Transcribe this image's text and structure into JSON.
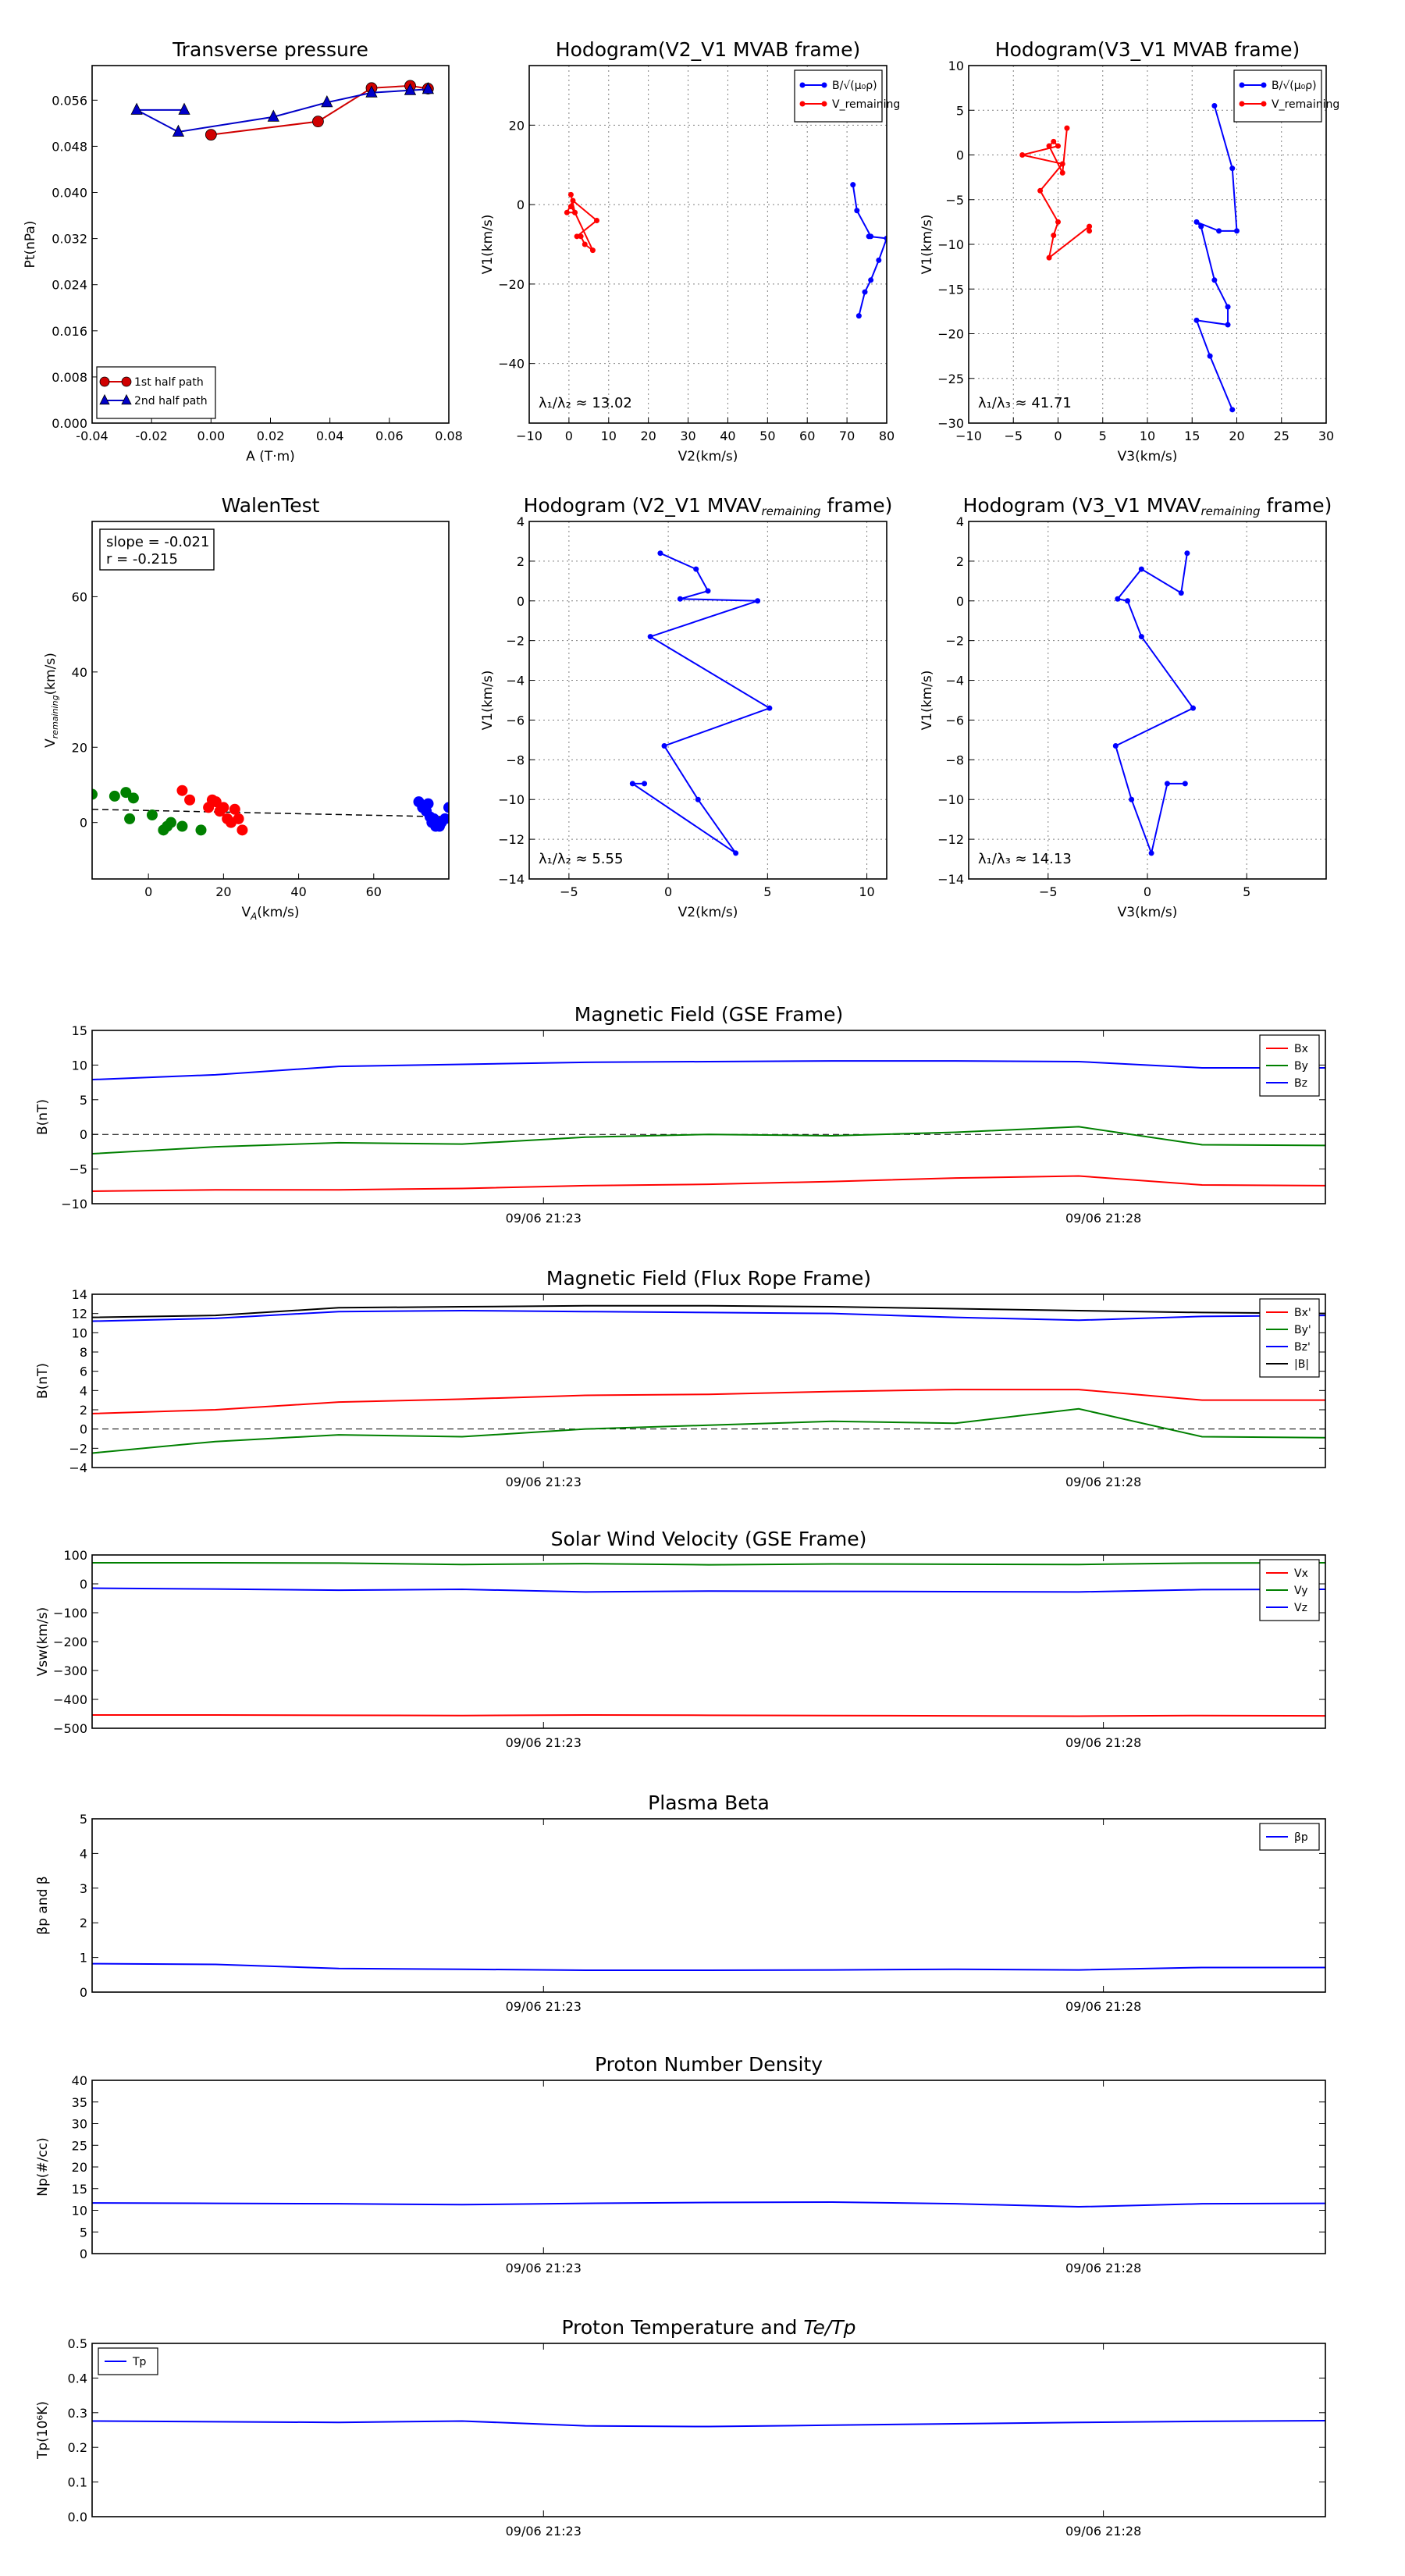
{
  "chart_data": [
    {
      "id": "tp",
      "type": "line",
      "title": "Transverse pressure",
      "xlabel": "A (T·m)",
      "ylabel": "Pt(nPa)",
      "xlim": [
        -0.04,
        0.08
      ],
      "ylim": [
        0.0,
        0.062
      ],
      "xticks": [
        "-0.04",
        "-0.02",
        "0.00",
        "0.02",
        "0.04",
        "0.06",
        "0.08"
      ],
      "yticks": [
        "0.000",
        "0.008",
        "0.016",
        "0.024",
        "0.032",
        "0.040",
        "0.048",
        "0.056"
      ],
      "legend": "lower-left",
      "series": [
        {
          "name": "1st half path",
          "color": "#d00000",
          "marker": "circle",
          "x": [
            0.0,
            0.036,
            0.054,
            0.067,
            0.073
          ],
          "y": [
            0.05,
            0.0523,
            0.0581,
            0.0585,
            0.058
          ]
        },
        {
          "name": "2nd half path",
          "color": "#0000c8",
          "marker": "triangle",
          "x": [
            -0.009,
            -0.025,
            -0.011,
            0.021,
            0.039,
            0.054,
            0.067,
            0.073
          ],
          "y": [
            0.0543,
            0.0543,
            0.0505,
            0.0531,
            0.0556,
            0.0573,
            0.0577,
            0.0579
          ]
        }
      ]
    },
    {
      "id": "h1",
      "type": "line",
      "title": "Hodogram(V2_V1 MVAB frame)",
      "xlabel": "V2(km/s)",
      "ylabel": "V1(km/s)",
      "xlim": [
        -10,
        80
      ],
      "ylim": [
        -55,
        35
      ],
      "xticks": [
        "−10",
        "0",
        "10",
        "20",
        "30",
        "40",
        "50",
        "60",
        "70",
        "80"
      ],
      "yticks": [
        "20",
        "0",
        "−20",
        "−40"
      ],
      "legend": "top-right",
      "annotation": "λ₁/λ₂ ≈ 13.02",
      "series": [
        {
          "name": "B/√(μ₀ρ)",
          "color": "#0000ff",
          "x": [
            71.5,
            72.5,
            76,
            75.5,
            80,
            78,
            76,
            74.5,
            73
          ],
          "y": [
            5,
            -1.5,
            -8,
            -8,
            -8.5,
            -14,
            -19,
            -22,
            -28
          ]
        },
        {
          "name": "V_remaining",
          "color": "#ff0000",
          "x": [
            0.5,
            1.5,
            -0.5,
            1,
            7,
            2,
            3,
            4,
            6,
            1.5,
            0.5
          ],
          "y": [
            2.5,
            -2,
            -2,
            1,
            -4,
            -8,
            -8,
            -10,
            -11.5,
            -2,
            -0.5
          ]
        }
      ]
    },
    {
      "id": "h2",
      "type": "line",
      "title": "Hodogram(V3_V1 MVAB frame)",
      "xlabel": "V3(km/s)",
      "ylabel": "V1(km/s)",
      "xlim": [
        -10,
        30
      ],
      "ylim": [
        -30,
        10
      ],
      "xticks": [
        "−10",
        "−5",
        "0",
        "5",
        "10",
        "15",
        "20",
        "25",
        "30"
      ],
      "yticks": [
        "10",
        "5",
        "0",
        "−5",
        "−10",
        "−15",
        "−20",
        "−25",
        "−30"
      ],
      "legend": "top-right",
      "annotation": "λ₁/λ₃ ≈ 41.71",
      "series": [
        {
          "name": "B/√(μ₀ρ)",
          "color": "#0000ff",
          "x": [
            17.5,
            19.5,
            20,
            18,
            15.5,
            16,
            17.5,
            19,
            19,
            15.5,
            17,
            19.5
          ],
          "y": [
            5.5,
            -1.5,
            -8.5,
            -8.5,
            -7.5,
            -8,
            -14,
            -17,
            -19,
            -18.5,
            -22.5,
            -28.5
          ]
        },
        {
          "name": "V_remaining",
          "color": "#ff0000",
          "x": [
            1,
            0.5,
            -1,
            -0.5,
            0,
            -4,
            0.5,
            -2,
            0,
            -0.5,
            -1,
            3.5,
            3.5
          ],
          "y": [
            3,
            -2,
            1,
            1.5,
            1,
            0,
            -1,
            -4,
            -7.5,
            -9,
            -11.5,
            -8,
            -8.5
          ]
        }
      ]
    },
    {
      "id": "walen",
      "type": "scatter",
      "title": "WalenTest",
      "xlabel": "V_A(km/s)",
      "ylabel": "V_remaining(km/s)",
      "xlim": [
        -15,
        80
      ],
      "ylim": [
        -15,
        80
      ],
      "xticks": [
        "0",
        "20",
        "40",
        "60"
      ],
      "yticks": [
        "0",
        "20",
        "40",
        "60"
      ],
      "annotation": [
        "slope = -0.021",
        "r = -0.215"
      ],
      "fit": {
        "x": [
          -15,
          80
        ],
        "y": [
          3.5,
          1.5
        ]
      },
      "series": [
        {
          "color": "#008000",
          "x": [
            -15,
            -9,
            -6,
            -5,
            -4,
            1,
            4,
            5,
            6,
            9,
            14
          ],
          "y": [
            7.5,
            7,
            8,
            1,
            6.5,
            2,
            -2,
            -1,
            0,
            -1,
            -2
          ]
        },
        {
          "color": "#ff0000",
          "x": [
            9,
            11,
            16,
            17,
            18,
            19,
            20,
            21,
            22,
            23,
            24,
            25
          ],
          "y": [
            8.5,
            6,
            4,
            6,
            5.5,
            3,
            4,
            1,
            0,
            3.5,
            1,
            -2
          ]
        },
        {
          "color": "#0000ff",
          "x": [
            72,
            73,
            74,
            74.5,
            75,
            75.5,
            76,
            76.5,
            77,
            77.5,
            78,
            79,
            80
          ],
          "y": [
            5.5,
            4,
            3,
            5,
            1.5,
            0,
            1,
            -1,
            -0.5,
            -1,
            0,
            1,
            4
          ]
        }
      ]
    },
    {
      "id": "h3",
      "type": "line",
      "title": "Hodogram (V2_V1 MVAV_remaining frame)",
      "xlabel": "V2(km/s)",
      "ylabel": "V1(km/s)",
      "xlim": [
        -7,
        11
      ],
      "ylim": [
        -14,
        4
      ],
      "xticks": [
        "−5",
        "0",
        "5",
        "10"
      ],
      "yticks": [
        "4",
        "2",
        "0",
        "−2",
        "−4",
        "−6",
        "−8",
        "−10",
        "−12",
        "−14"
      ],
      "annotation": "λ₁/λ₂ ≈ 5.55",
      "series": [
        {
          "color": "#0000ff",
          "x": [
            -0.4,
            1.4,
            2.0,
            0.6,
            4.5,
            -0.9,
            5.1,
            -0.2,
            1.5,
            3.4,
            -1.8,
            -1.2
          ],
          "y": [
            2.4,
            1.6,
            0.5,
            0.1,
            0.0,
            -1.8,
            -5.4,
            -7.3,
            -10.0,
            -12.7,
            -9.2,
            -9.2
          ]
        }
      ]
    },
    {
      "id": "h4",
      "type": "line",
      "title": "Hodogram (V3_V1 MVAV_remaining frame)",
      "xlabel": "V3(km/s)",
      "ylabel": "V1(km/s)",
      "xlim": [
        -9,
        9
      ],
      "ylim": [
        -14,
        4
      ],
      "xticks": [
        "−5",
        "0",
        "5"
      ],
      "yticks": [
        "4",
        "2",
        "0",
        "−2",
        "−4",
        "−6",
        "−8",
        "−10",
        "−12",
        "−14"
      ],
      "annotation": "λ₁/λ₃ ≈ 14.13",
      "series": [
        {
          "color": "#0000ff",
          "x": [
            2.0,
            1.7,
            -0.3,
            -1.5,
            -1.0,
            -0.3,
            2.3,
            -1.6,
            -0.8,
            0.2,
            1.0,
            1.9
          ],
          "y": [
            2.4,
            0.4,
            1.6,
            0.1,
            0.0,
            -1.8,
            -5.4,
            -7.3,
            -10.0,
            -12.7,
            -9.2,
            -9.2
          ]
        }
      ]
    },
    {
      "id": "ts1",
      "type": "line",
      "title": "Magnetic Field (GSE Frame)",
      "ylabel": "B(nT)",
      "ylim": [
        -10,
        15
      ],
      "yticks": [
        "15",
        "10",
        "5",
        "0",
        "−5",
        "−10"
      ],
      "x": [
        0,
        0.1,
        0.2,
        0.3,
        0.4,
        0.5,
        0.6,
        0.7,
        0.8,
        0.9,
        1.0
      ],
      "xticks": [
        {
          "pos": 0.366,
          "label": "09/06 21:23"
        },
        {
          "pos": 0.82,
          "label": "09/06 21:28"
        }
      ],
      "zero_line": true,
      "legend": "top-right",
      "series": [
        {
          "name": "Bx",
          "color": "#ff0000",
          "values": [
            -8.2,
            -8.0,
            -8.0,
            -7.8,
            -7.4,
            -7.2,
            -6.8,
            -6.3,
            -6.0,
            -7.3,
            -7.4
          ]
        },
        {
          "name": "By",
          "color": "#008000",
          "values": [
            -2.8,
            -1.8,
            -1.2,
            -1.4,
            -0.4,
            0.0,
            -0.2,
            0.3,
            1.1,
            -1.5,
            -1.6
          ]
        },
        {
          "name": "Bz",
          "color": "#0000ff",
          "values": [
            7.9,
            8.6,
            9.8,
            10.1,
            10.4,
            10.5,
            10.6,
            10.6,
            10.5,
            9.6,
            9.6
          ]
        }
      ]
    },
    {
      "id": "ts2",
      "type": "line",
      "title": "Magnetic Field (Flux Rope Frame)",
      "ylabel": "B(nT)",
      "ylim": [
        -4,
        14
      ],
      "yticks": [
        "14",
        "12",
        "10",
        "8",
        "6",
        "4",
        "2",
        "0",
        "−2",
        "−4"
      ],
      "x": [
        0,
        0.1,
        0.2,
        0.3,
        0.4,
        0.5,
        0.6,
        0.7,
        0.8,
        0.9,
        1.0
      ],
      "xticks": [
        {
          "pos": 0.366,
          "label": "09/06 21:23"
        },
        {
          "pos": 0.82,
          "label": "09/06 21:28"
        }
      ],
      "zero_line": true,
      "legend": "top-right",
      "series": [
        {
          "name": "Bx'",
          "color": "#ff0000",
          "values": [
            1.6,
            2.0,
            2.8,
            3.1,
            3.5,
            3.6,
            3.9,
            4.1,
            4.1,
            3.0,
            3.0
          ]
        },
        {
          "name": "By'",
          "color": "#008000",
          "values": [
            -2.5,
            -1.3,
            -0.6,
            -0.8,
            0.0,
            0.4,
            0.8,
            0.6,
            2.1,
            -0.8,
            -0.9
          ]
        },
        {
          "name": "Bz'",
          "color": "#0000ff",
          "values": [
            11.2,
            11.5,
            12.2,
            12.3,
            12.2,
            12.1,
            12.0,
            11.6,
            11.3,
            11.7,
            11.8
          ]
        },
        {
          "name": "|B|",
          "color": "#000000",
          "values": [
            11.6,
            11.8,
            12.6,
            12.7,
            12.8,
            12.8,
            12.7,
            12.5,
            12.3,
            12.1,
            12.0
          ]
        }
      ]
    },
    {
      "id": "ts3",
      "type": "line",
      "title": "Solar Wind Velocity (GSE Frame)",
      "ylabel": "Vsw(km/s)",
      "ylim": [
        -500,
        100
      ],
      "yticks": [
        "100",
        "0",
        "−100",
        "−200",
        "−300",
        "−400",
        "−500"
      ],
      "x": [
        0,
        0.1,
        0.2,
        0.3,
        0.4,
        0.5,
        0.6,
        0.7,
        0.8,
        0.9,
        1.0
      ],
      "xticks": [
        {
          "pos": 0.366,
          "label": "09/06 21:23"
        },
        {
          "pos": 0.82,
          "label": "09/06 21:28"
        }
      ],
      "legend": "top-right",
      "series": [
        {
          "name": "Vx",
          "color": "#ff0000",
          "values": [
            -454,
            -454,
            -455,
            -456,
            -454,
            -455,
            -456,
            -457,
            -458,
            -456,
            -457
          ]
        },
        {
          "name": "Vy",
          "color": "#008000",
          "values": [
            73,
            73,
            72,
            67,
            70,
            66,
            69,
            68,
            67,
            72,
            73
          ]
        },
        {
          "name": "Vz",
          "color": "#0000ff",
          "values": [
            -15,
            -18,
            -22,
            -19,
            -28,
            -25,
            -26,
            -27,
            -28,
            -20,
            -19
          ]
        }
      ]
    },
    {
      "id": "ts4",
      "type": "line",
      "title": "Plasma Beta",
      "ylabel": "βp and β",
      "ylim": [
        0,
        5
      ],
      "yticks": [
        "5",
        "4",
        "3",
        "2",
        "1",
        "0"
      ],
      "x": [
        0,
        0.1,
        0.2,
        0.3,
        0.4,
        0.5,
        0.6,
        0.7,
        0.8,
        0.9,
        1.0
      ],
      "xticks": [
        {
          "pos": 0.366,
          "label": "09/06 21:23"
        },
        {
          "pos": 0.82,
          "label": "09/06 21:28"
        }
      ],
      "legend": "top-right",
      "series": [
        {
          "name": "βp",
          "color": "#0000ff",
          "values": [
            0.82,
            0.8,
            0.68,
            0.66,
            0.63,
            0.63,
            0.64,
            0.66,
            0.64,
            0.71,
            0.71
          ]
        }
      ]
    },
    {
      "id": "ts5",
      "type": "line",
      "title": "Proton Number Density",
      "ylabel": "Np(#/cc)",
      "ylim": [
        0,
        40
      ],
      "yticks": [
        "40",
        "35",
        "30",
        "25",
        "20",
        "15",
        "10",
        "5",
        "0"
      ],
      "x": [
        0,
        0.1,
        0.2,
        0.3,
        0.4,
        0.5,
        0.6,
        0.7,
        0.8,
        0.9,
        1.0
      ],
      "xticks": [
        {
          "pos": 0.366,
          "label": "09/06 21:23"
        },
        {
          "pos": 0.82,
          "label": "09/06 21:28"
        }
      ],
      "series": [
        {
          "color": "#0000ff",
          "values": [
            11.7,
            11.6,
            11.5,
            11.3,
            11.6,
            11.8,
            11.9,
            11.5,
            10.8,
            11.5,
            11.6
          ]
        }
      ]
    },
    {
      "id": "ts6",
      "type": "line",
      "title": "Proton Temperature and Te/Tp",
      "ylabel": "Tp(10⁶K)",
      "ylim": [
        0,
        0.5
      ],
      "yticks": [
        "0.5",
        "0.4",
        "0.3",
        "0.2",
        "0.1",
        "0.0"
      ],
      "x": [
        0,
        0.1,
        0.2,
        0.3,
        0.4,
        0.5,
        0.6,
        0.7,
        0.8,
        0.9,
        1.0
      ],
      "xticks": [
        {
          "pos": 0.366,
          "label": "09/06 21:23"
        },
        {
          "pos": 0.82,
          "label": "09/06 21:28"
        }
      ],
      "legend": "top-left",
      "series": [
        {
          "name": "Tp",
          "color": "#0000ff",
          "values": [
            0.276,
            0.274,
            0.272,
            0.276,
            0.262,
            0.26,
            0.264,
            0.268,
            0.272,
            0.275,
            0.277
          ]
        }
      ]
    }
  ]
}
